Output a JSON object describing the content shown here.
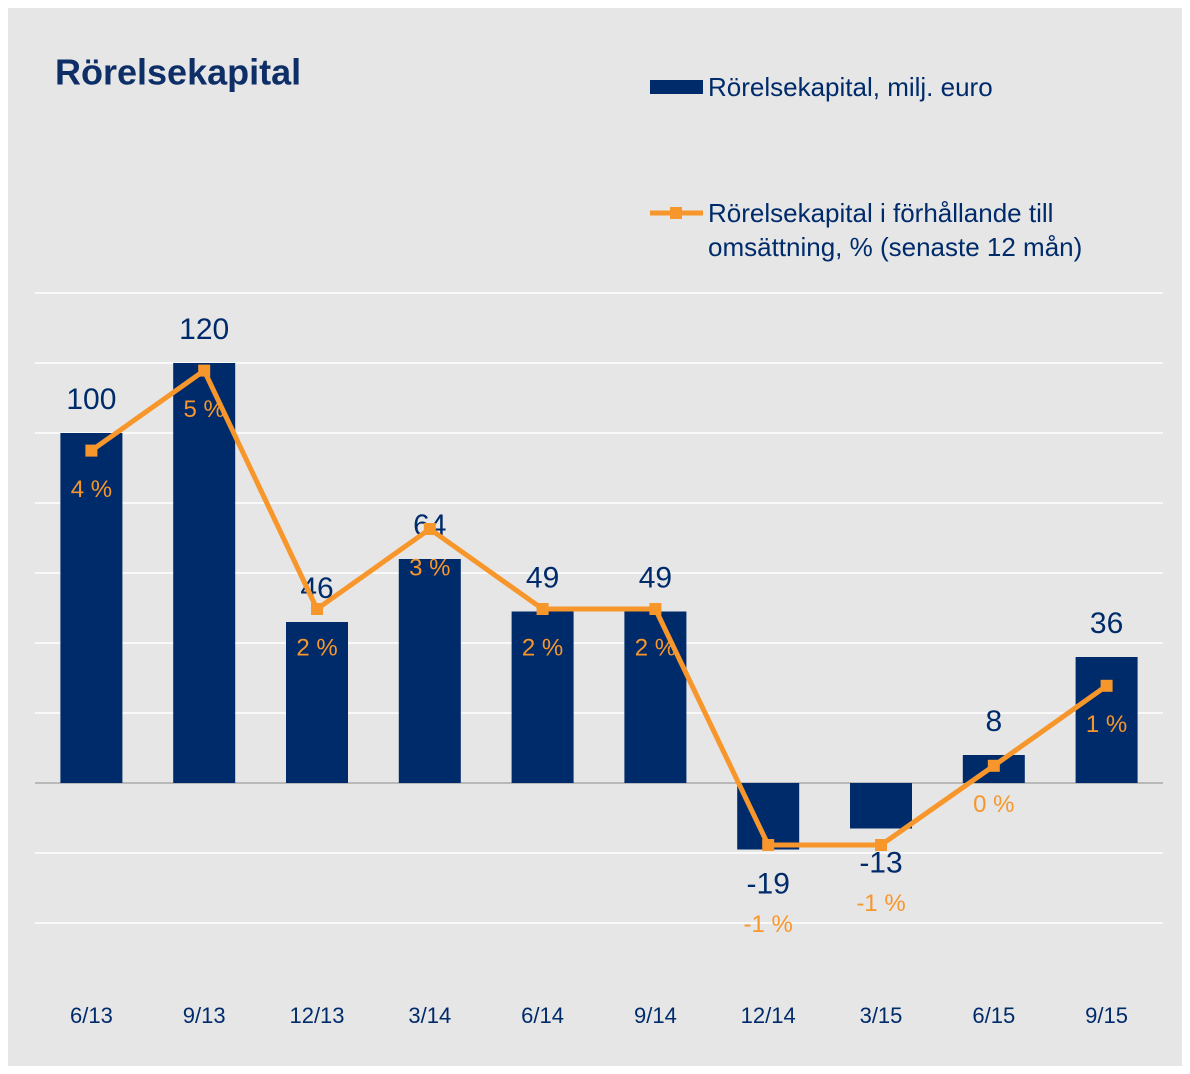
{
  "chart_data": {
    "type": "bar",
    "title": "Rörelsekapital",
    "categories": [
      "6/13",
      "9/13",
      "12/13",
      "3/14",
      "6/14",
      "9/14",
      "12/14",
      "3/15",
      "6/15",
      "9/15"
    ],
    "series": [
      {
        "name": "Rörelsekapital, milj. euro",
        "type": "bar",
        "color": "#002b6b",
        "values": [
          100,
          120,
          46,
          64,
          49,
          49,
          -19,
          -13,
          8,
          36
        ]
      },
      {
        "name": "Rörelsekapital i förhållande till omsättning, % (senaste 12 mån)",
        "type": "line",
        "axis": "y2",
        "color": "#f7962b",
        "values": [
          3.98,
          4.98,
          2,
          3,
          2,
          2,
          -0.95,
          -0.95,
          0.04,
          1.04
        ],
        "value_labels": [
          "4 %",
          "5 %",
          "2 %",
          "3 %",
          "2 %",
          "2 %",
          "-1 %",
          "-1 %",
          "0 %",
          "1 %"
        ]
      }
    ],
    "ylim": [
      -40,
      140
    ],
    "yticks": [
      -40,
      -20,
      0,
      20,
      40,
      60,
      80,
      100,
      120,
      140
    ],
    "y2lim": [
      -1.925,
      5.95
    ],
    "grid": true,
    "legend": "top-right"
  }
}
